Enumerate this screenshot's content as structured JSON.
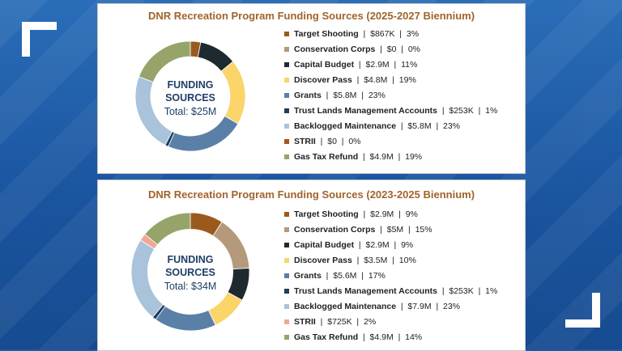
{
  "chart_data": [
    {
      "type": "pie",
      "title": "DNR Recreation Program Funding Sources (2025-2027 Biennium)",
      "center_title_line1": "FUNDING",
      "center_title_line2": "SOURCES",
      "center_total": "Total: $25M",
      "slices": [
        {
          "name": "Target Shooting",
          "amount": "$867K",
          "percent": 3,
          "percent_label": "3%",
          "color": "#9a5a1e"
        },
        {
          "name": "Conservation Corps",
          "amount": "$0",
          "percent": 0,
          "percent_label": "0%",
          "color": "#b4997a"
        },
        {
          "name": "Capital Budget",
          "amount": "$2.9M",
          "percent": 11,
          "percent_label": "11%",
          "color": "#1f2a30"
        },
        {
          "name": "Discover Pass",
          "amount": "$4.8M",
          "percent": 19,
          "percent_label": "19%",
          "color": "#fbd46a"
        },
        {
          "name": "Grants",
          "amount": "$5.8M",
          "percent": 23,
          "percent_label": "23%",
          "color": "#5a80a8"
        },
        {
          "name": "Trust Lands Management Accounts",
          "amount": "$253K",
          "percent": 1,
          "percent_label": "1%",
          "color": "#1d3f5e"
        },
        {
          "name": "Backlogged Maintenance",
          "amount": "$5.8M",
          "percent": 23,
          "percent_label": "23%",
          "color": "#a8c3da"
        },
        {
          "name": "STRII",
          "amount": "$0",
          "percent": 0,
          "percent_label": "0%",
          "color": "#a3561c"
        },
        {
          "name": "Gas Tax Refund",
          "amount": "$4.9M",
          "percent": 19,
          "percent_label": "19%",
          "color": "#96a46a"
        }
      ]
    },
    {
      "type": "pie",
      "title": "DNR Recreation Program Funding Sources (2023-2025 Biennium)",
      "center_title_line1": "FUNDING",
      "center_title_line2": "SOURCES",
      "center_total": "Total: $34M",
      "slices": [
        {
          "name": "Target Shooting",
          "amount": "$2.9M",
          "percent": 9,
          "percent_label": "9%",
          "color": "#9a5a1e"
        },
        {
          "name": "Conservation Corps",
          "amount": "$5M",
          "percent": 15,
          "percent_label": "15%",
          "color": "#b4997a"
        },
        {
          "name": "Capital Budget",
          "amount": "$2.9M",
          "percent": 9,
          "percent_label": "9%",
          "color": "#1f2a30"
        },
        {
          "name": "Discover Pass",
          "amount": "$3.5M",
          "percent": 10,
          "percent_label": "10%",
          "color": "#fbd46a"
        },
        {
          "name": "Grants",
          "amount": "$5.6M",
          "percent": 17,
          "percent_label": "17%",
          "color": "#5a80a8"
        },
        {
          "name": "Trust Lands Management Accounts",
          "amount": "$253K",
          "percent": 1,
          "percent_label": "1%",
          "color": "#1d3f5e"
        },
        {
          "name": "Backlogged Maintenance",
          "amount": "$7.9M",
          "percent": 23,
          "percent_label": "23%",
          "color": "#a8c3da"
        },
        {
          "name": "STRII",
          "amount": "$725K",
          "percent": 2,
          "percent_label": "2%",
          "color": "#f0a893"
        },
        {
          "name": "Gas Tax Refund",
          "amount": "$4.9M",
          "percent": 14,
          "percent_label": "14%",
          "color": "#96a46a"
        }
      ]
    }
  ]
}
